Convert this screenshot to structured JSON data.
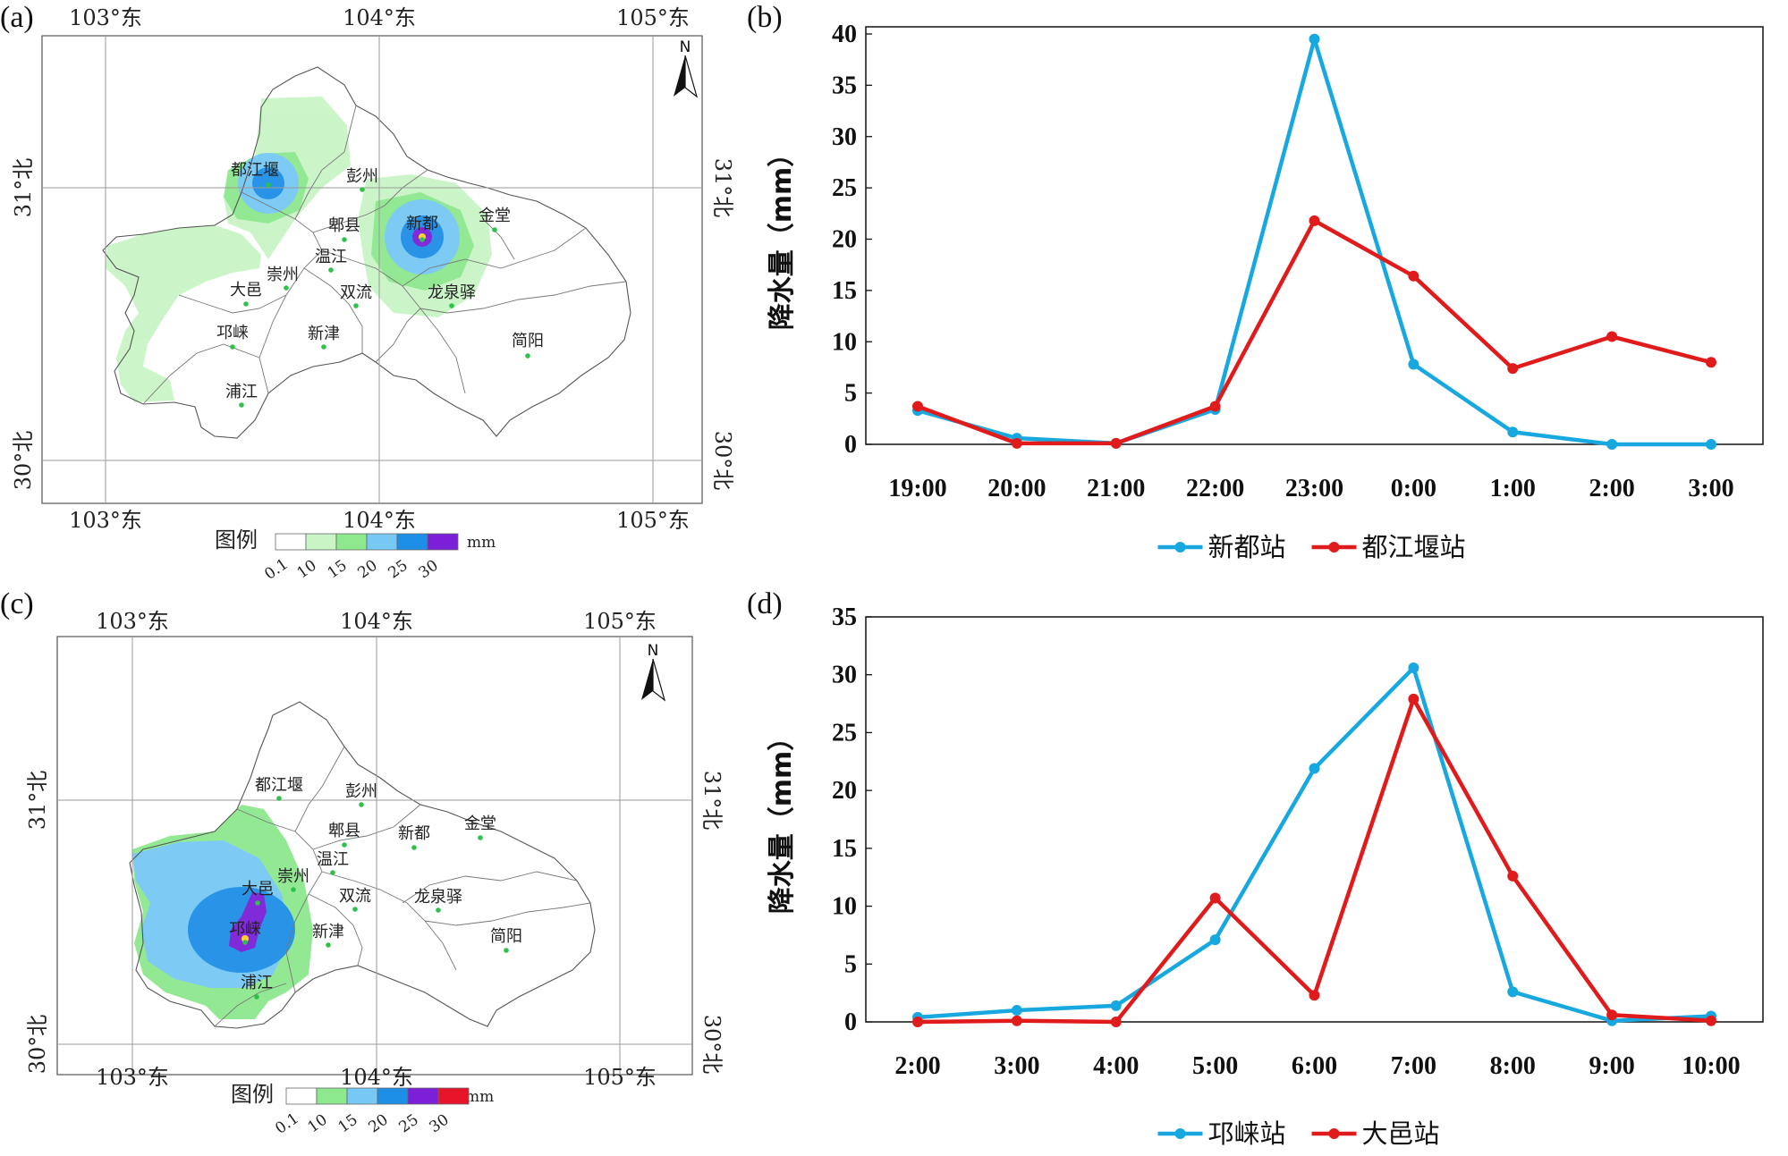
{
  "panels": {
    "a": {
      "label": "(a)"
    },
    "b": {
      "label": "(b)"
    },
    "c": {
      "label": "(c)"
    },
    "d": {
      "label": "(d)"
    }
  },
  "maps": [
    {
      "lon_labels": [
        "103°东",
        "104°东",
        "105°东"
      ],
      "lat_labels": [
        "31°北",
        "30°北"
      ],
      "north": "N",
      "legend_title": "图例",
      "legend_unit": "mm",
      "legend_values": [
        "0.1",
        "10",
        "15",
        "20",
        "25",
        "30"
      ],
      "legend_colors": [
        "#ffffff",
        "#c9f5c6",
        "#8ee88e",
        "#77c8f5",
        "#1e8fe6",
        "#7b1fd8"
      ],
      "cities": [
        {
          "name": "都江堰"
        },
        {
          "name": "彭州"
        },
        {
          "name": "郫县"
        },
        {
          "name": "新都"
        },
        {
          "name": "金堂"
        },
        {
          "name": "温江"
        },
        {
          "name": "崇州"
        },
        {
          "name": "大邑"
        },
        {
          "name": "双流"
        },
        {
          "name": "龙泉驿"
        },
        {
          "name": "邛崃"
        },
        {
          "name": "新津"
        },
        {
          "name": "简阳"
        },
        {
          "name": "浦江"
        }
      ]
    },
    {
      "lon_labels": [
        "103°东",
        "104°东",
        "105°东"
      ],
      "lat_labels": [
        "31°北",
        "30°北"
      ],
      "north": "N",
      "legend_title": "图例",
      "legend_unit": "mm",
      "legend_values": [
        "0.1",
        "10",
        "15",
        "20",
        "25",
        "30"
      ],
      "legend_colors": [
        "#ffffff",
        "#8ee88e",
        "#77c8f5",
        "#1e8fe6",
        "#7b1fd8",
        "#e8142a"
      ],
      "cities": [
        {
          "name": "都江堰"
        },
        {
          "name": "彭州"
        },
        {
          "name": "郫县"
        },
        {
          "name": "新都"
        },
        {
          "name": "金堂"
        },
        {
          "name": "温江"
        },
        {
          "name": "崇州"
        },
        {
          "name": "大邑"
        },
        {
          "name": "双流"
        },
        {
          "name": "龙泉驿"
        },
        {
          "name": "邛崃"
        },
        {
          "name": "新津"
        },
        {
          "name": "简阳"
        },
        {
          "name": "浦江"
        }
      ]
    }
  ],
  "chart_data": [
    {
      "type": "line",
      "ylabel": "降水量（mm）",
      "ylim": [
        0,
        40
      ],
      "yticks": [
        "0",
        "5",
        "10",
        "15",
        "20",
        "25",
        "30",
        "35",
        "40"
      ],
      "categories": [
        "19:00",
        "20:00",
        "21:00",
        "22:00",
        "23:00",
        "0:00",
        "1:00",
        "2:00",
        "3:00"
      ],
      "legend": "bottom-center",
      "series": [
        {
          "name": "新都站",
          "color": "#18a8e0",
          "values": [
            3.3,
            0.6,
            0.1,
            3.4,
            39.5,
            7.8,
            1.2,
            0.0,
            0.0
          ]
        },
        {
          "name": "都江堰站",
          "color": "#e01b1b",
          "values": [
            3.7,
            0.1,
            0.1,
            3.7,
            21.8,
            16.4,
            7.4,
            10.5,
            8.0
          ]
        }
      ]
    },
    {
      "type": "line",
      "ylabel": "降水量（mm）",
      "ylim": [
        0,
        35
      ],
      "yticks": [
        "0",
        "5",
        "10",
        "15",
        "20",
        "25",
        "30",
        "35"
      ],
      "categories": [
        "2:00",
        "3:00",
        "4:00",
        "5:00",
        "6:00",
        "7:00",
        "8:00",
        "9:00",
        "10:00"
      ],
      "legend": "bottom-center",
      "series": [
        {
          "name": "邛崃站",
          "color": "#18a8e0",
          "values": [
            0.4,
            1.0,
            1.4,
            7.1,
            21.9,
            30.6,
            2.6,
            0.1,
            0.5
          ]
        },
        {
          "name": "大邑站",
          "color": "#e01b1b",
          "values": [
            0.0,
            0.1,
            0.0,
            10.7,
            2.3,
            27.9,
            12.6,
            0.6,
            0.1
          ]
        }
      ]
    }
  ]
}
